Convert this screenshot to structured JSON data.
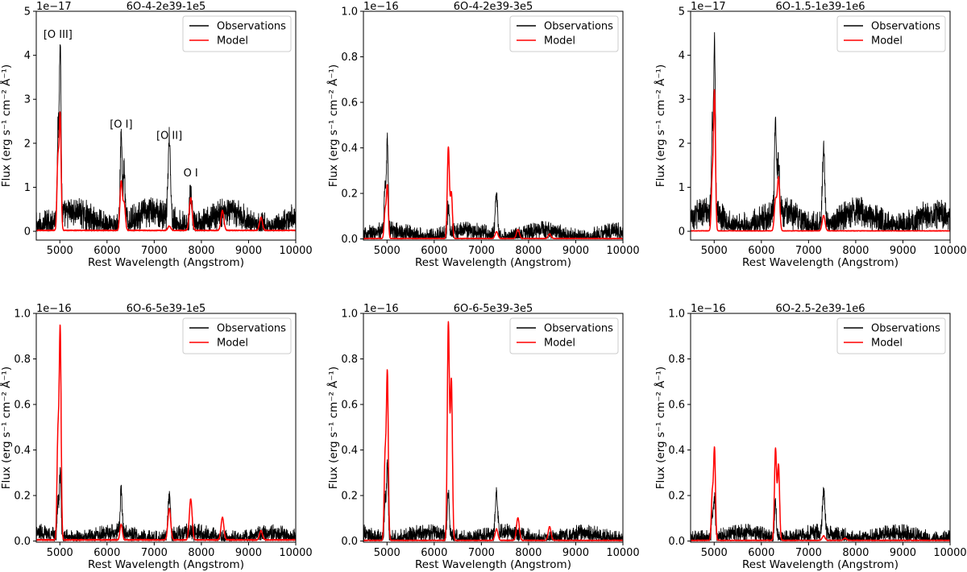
{
  "chart_data": [
    {
      "type": "line",
      "title": "6O-4-2e39-1e5",
      "xlabel": "Rest Wavelength (Angstrom)",
      "ylabel": "Flux (erg s⁻¹ cm⁻² Å⁻¹)",
      "offset_text": "1e−17",
      "xlim": [
        4500,
        10000
      ],
      "ylim": [
        -0.2,
        5
      ],
      "xticks": [
        5000,
        6000,
        7000,
        8000,
        9000,
        10000
      ],
      "yticks": [
        0,
        1,
        2,
        3,
        4,
        5
      ],
      "legend": {
        "position": "top-right",
        "entries": [
          "Observations",
          "Model"
        ]
      },
      "annotations": [
        {
          "text": "[O III]",
          "x": 4959,
          "y": 4.4
        },
        {
          "text": "[O I]",
          "x": 6300,
          "y": 2.35
        },
        {
          "text": "[O II]",
          "x": 7320,
          "y": 2.1
        },
        {
          "text": "O I",
          "x": 7774,
          "y": 1.25
        }
      ],
      "series": [
        {
          "name": "Observations",
          "color": "#000000",
          "noise_base": 0.35,
          "noise_amp": 0.35,
          "peaks": [
            [
              4959,
              1.9,
              18
            ],
            [
              5007,
              4.05,
              18
            ],
            [
              6300,
              2.15,
              20
            ],
            [
              6364,
              1.2,
              20
            ],
            [
              7320,
              1.85,
              25
            ],
            [
              7774,
              0.8,
              25
            ]
          ]
        },
        {
          "name": "Model",
          "color": "#ff0000",
          "baseline": 0.02,
          "peaks": [
            [
              4959,
              1.6,
              20
            ],
            [
              5007,
              2.6,
              20
            ],
            [
              6300,
              1.1,
              25
            ],
            [
              6364,
              0.6,
              25
            ],
            [
              7320,
              0.1,
              30
            ],
            [
              7774,
              0.75,
              30
            ],
            [
              8446,
              0.45,
              30
            ],
            [
              9264,
              0.3,
              30
            ]
          ]
        }
      ]
    },
    {
      "type": "line",
      "title": "6O-4-2e39-3e5",
      "xlabel": "Rest Wavelength (Angstrom)",
      "ylabel": "Flux (erg s⁻¹ cm⁻² Å⁻¹)",
      "offset_text": "1e−16",
      "xlim": [
        4500,
        10000
      ],
      "ylim": [
        -0.005,
        1.0
      ],
      "xticks": [
        5000,
        6000,
        7000,
        8000,
        9000,
        10000
      ],
      "yticks": [
        0.0,
        0.2,
        0.4,
        0.6,
        0.8,
        1.0
      ],
      "legend": {
        "position": "top-right",
        "entries": [
          "Observations",
          "Model"
        ]
      },
      "annotations": [],
      "series": [
        {
          "name": "Observations",
          "color": "#000000",
          "noise_base": 0.03,
          "noise_amp": 0.04,
          "peaks": [
            [
              4959,
              0.2,
              18
            ],
            [
              5007,
              0.4,
              18
            ],
            [
              6300,
              0.12,
              20
            ],
            [
              7320,
              0.18,
              25
            ]
          ]
        },
        {
          "name": "Model",
          "color": "#ff0000",
          "baseline": 0.002,
          "peaks": [
            [
              4959,
              0.12,
              20
            ],
            [
              5007,
              0.23,
              20
            ],
            [
              6300,
              0.4,
              22
            ],
            [
              6364,
              0.2,
              22
            ],
            [
              7320,
              0.03,
              30
            ],
            [
              7774,
              0.04,
              30
            ],
            [
              8446,
              0.02,
              30
            ]
          ]
        }
      ]
    },
    {
      "type": "line",
      "title": "6O-1.5-1e39-1e6",
      "xlabel": "Rest Wavelength (Angstrom)",
      "ylabel": "Flux (erg s⁻¹ cm⁻² Å⁻¹)",
      "offset_text": "1e−17",
      "xlim": [
        4500,
        10000
      ],
      "ylim": [
        -0.2,
        5
      ],
      "xticks": [
        5000,
        6000,
        7000,
        8000,
        9000,
        10000
      ],
      "yticks": [
        0,
        1,
        2,
        3,
        4,
        5
      ],
      "legend": {
        "position": "top-right",
        "entries": [
          "Observations",
          "Model"
        ]
      },
      "annotations": [],
      "series": [
        {
          "name": "Observations",
          "color": "#000000",
          "noise_base": 0.35,
          "noise_amp": 0.35,
          "peaks": [
            [
              4959,
              1.9,
              18
            ],
            [
              5007,
              4.05,
              18
            ],
            [
              6300,
              2.15,
              20
            ],
            [
              6364,
              1.2,
              20
            ],
            [
              7320,
              1.85,
              25
            ]
          ]
        },
        {
          "name": "Model",
          "color": "#ff0000",
          "baseline": 0.01,
          "peaks": [
            [
              4959,
              1.2,
              20
            ],
            [
              5007,
              3.15,
              20
            ],
            [
              6300,
              0.7,
              25
            ],
            [
              6364,
              1.2,
              25
            ],
            [
              7320,
              0.35,
              30
            ]
          ]
        }
      ]
    },
    {
      "type": "line",
      "title": "6O-6-5e39-1e5",
      "xlabel": "Rest Wavelength (Angstrom)",
      "ylabel": "Flux (erg s⁻¹ cm⁻² Å⁻¹)",
      "offset_text": "1e−16",
      "xlim": [
        4500,
        10000
      ],
      "ylim": [
        -0.005,
        1.0
      ],
      "xticks": [
        5000,
        6000,
        7000,
        8000,
        9000,
        10000
      ],
      "yticks": [
        0.0,
        0.2,
        0.4,
        0.6,
        0.8,
        1.0
      ],
      "legend": {
        "position": "top-right",
        "entries": [
          "Observations",
          "Model"
        ]
      },
      "annotations": [],
      "series": [
        {
          "name": "Observations",
          "color": "#000000",
          "noise_base": 0.03,
          "noise_amp": 0.04,
          "peaks": [
            [
              4959,
              0.14,
              18
            ],
            [
              5007,
              0.28,
              18
            ],
            [
              6300,
              0.2,
              20
            ],
            [
              7320,
              0.18,
              25
            ]
          ]
        },
        {
          "name": "Model",
          "color": "#ff0000",
          "baseline": 0.005,
          "peaks": [
            [
              4959,
              0.45,
              20
            ],
            [
              5007,
              0.92,
              20
            ],
            [
              6300,
              0.07,
              25
            ],
            [
              7320,
              0.14,
              30
            ],
            [
              7774,
              0.18,
              30
            ],
            [
              8446,
              0.1,
              30
            ],
            [
              9264,
              0.04,
              30
            ]
          ]
        }
      ]
    },
    {
      "type": "line",
      "title": "6O-6-5e39-3e5",
      "xlabel": "Rest Wavelength (Angstrom)",
      "ylabel": "Flux (erg s⁻¹ cm⁻² Å⁻¹)",
      "offset_text": "1e−16",
      "xlim": [
        4500,
        10000
      ],
      "ylim": [
        -0.005,
        1.0
      ],
      "xticks": [
        5000,
        6000,
        7000,
        8000,
        9000,
        10000
      ],
      "yticks": [
        0.0,
        0.2,
        0.4,
        0.6,
        0.8,
        1.0
      ],
      "legend": {
        "position": "top-right",
        "entries": [
          "Observations",
          "Model"
        ]
      },
      "annotations": [],
      "series": [
        {
          "name": "Observations",
          "color": "#000000",
          "noise_base": 0.03,
          "noise_amp": 0.04,
          "peaks": [
            [
              4959,
              0.16,
              18
            ],
            [
              5007,
              0.32,
              18
            ],
            [
              6300,
              0.2,
              20
            ],
            [
              7320,
              0.18,
              25
            ]
          ]
        },
        {
          "name": "Model",
          "color": "#ff0000",
          "baseline": 0.003,
          "peaks": [
            [
              4959,
              0.36,
              20
            ],
            [
              5007,
              0.73,
              20
            ],
            [
              6300,
              0.95,
              22
            ],
            [
              6364,
              0.7,
              22
            ],
            [
              7320,
              0.05,
              30
            ],
            [
              7774,
              0.1,
              30
            ],
            [
              8446,
              0.06,
              30
            ]
          ]
        }
      ]
    },
    {
      "type": "line",
      "title": "6O-2.5-2e39-1e6",
      "xlabel": "Rest Wavelength (Angstrom)",
      "ylabel": "Flux (erg s⁻¹ cm⁻² Å⁻¹)",
      "offset_text": "1e−16",
      "xlim": [
        4500,
        10000
      ],
      "ylim": [
        -0.005,
        1.0
      ],
      "xticks": [
        5000,
        6000,
        7000,
        8000,
        9000,
        10000
      ],
      "yticks": [
        0.0,
        0.2,
        0.4,
        0.6,
        0.8,
        1.0
      ],
      "legend": {
        "position": "top-right",
        "entries": [
          "Observations",
          "Model"
        ]
      },
      "annotations": [],
      "series": [
        {
          "name": "Observations",
          "color": "#000000",
          "noise_base": 0.03,
          "noise_amp": 0.04,
          "peaks": [
            [
              4959,
              0.1,
              18
            ],
            [
              5007,
              0.19,
              18
            ],
            [
              6300,
              0.16,
              20
            ],
            [
              7320,
              0.18,
              25
            ]
          ]
        },
        {
          "name": "Model",
          "color": "#ff0000",
          "baseline": 0.003,
          "peaks": [
            [
              4959,
              0.2,
              20
            ],
            [
              5007,
              0.4,
              20
            ],
            [
              6300,
              0.4,
              22
            ],
            [
              6364,
              0.33,
              22
            ],
            [
              7320,
              0.02,
              30
            ],
            [
              7774,
              0.01,
              30
            ]
          ]
        }
      ]
    }
  ]
}
